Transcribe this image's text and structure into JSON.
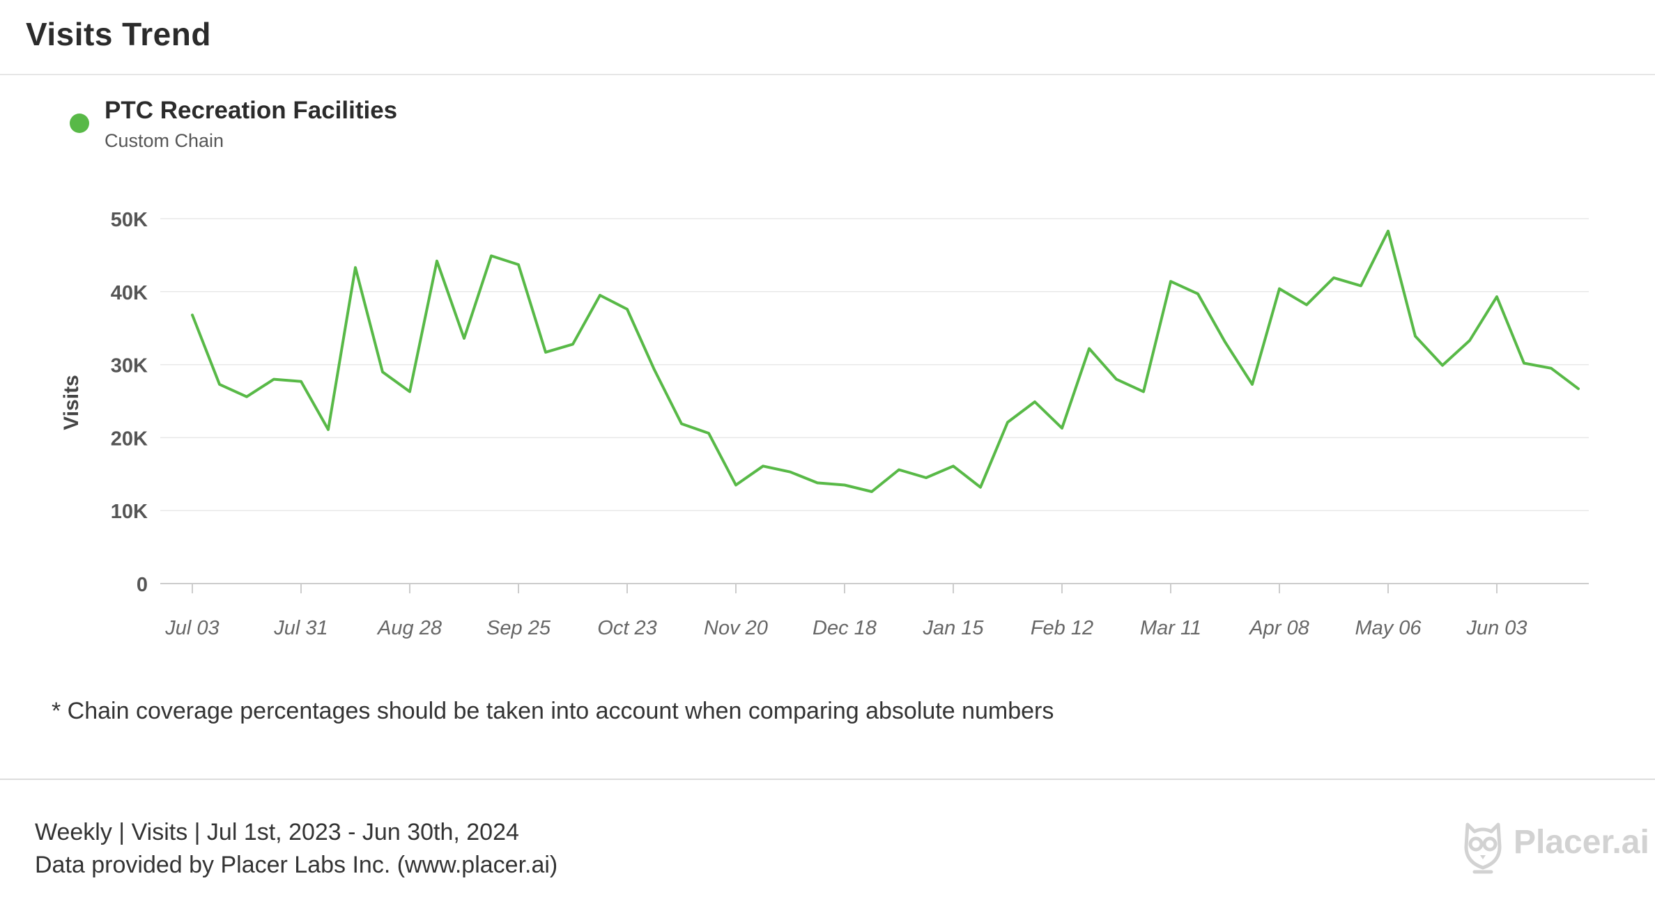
{
  "header": {
    "title": "Visits Trend"
  },
  "legend": {
    "name": "PTC Recreation Facilities",
    "subtitle": "Custom Chain",
    "color": "#58b947"
  },
  "chart_data": {
    "type": "line",
    "ylabel": "Visits",
    "xlabel": "",
    "ylim": [
      0,
      50000
    ],
    "yticks": [
      0,
      10000,
      20000,
      30000,
      40000,
      50000
    ],
    "ytick_labels": [
      "0",
      "10K",
      "20K",
      "30K",
      "40K",
      "50K"
    ],
    "xticks": [
      "2023-07-03",
      "2023-07-31",
      "2023-08-28",
      "2023-09-25",
      "2023-10-23",
      "2023-11-20",
      "2023-12-18",
      "2024-01-15",
      "2024-02-12",
      "2024-03-11",
      "2024-04-08",
      "2024-05-06",
      "2024-06-03"
    ],
    "xtick_labels": [
      "Jul 03",
      "Jul 31",
      "Aug 28",
      "Sep 25",
      "Oct 23",
      "Nov 20",
      "Dec 18",
      "Jan 15",
      "Feb 12",
      "Mar 11",
      "Apr 08",
      "May 06",
      "Jun 03"
    ],
    "grid": true,
    "series": [
      {
        "name": "PTC Recreation Facilities",
        "color": "#58b947",
        "x": [
          "2023-07-03",
          "2023-07-10",
          "2023-07-17",
          "2023-07-24",
          "2023-07-31",
          "2023-08-07",
          "2023-08-14",
          "2023-08-21",
          "2023-08-28",
          "2023-09-04",
          "2023-09-11",
          "2023-09-18",
          "2023-09-25",
          "2023-10-02",
          "2023-10-09",
          "2023-10-16",
          "2023-10-23",
          "2023-10-30",
          "2023-11-06",
          "2023-11-13",
          "2023-11-20",
          "2023-11-27",
          "2023-12-04",
          "2023-12-11",
          "2023-12-18",
          "2023-12-25",
          "2024-01-01",
          "2024-01-08",
          "2024-01-15",
          "2024-01-22",
          "2024-01-29",
          "2024-02-05",
          "2024-02-12",
          "2024-02-19",
          "2024-02-26",
          "2024-03-04",
          "2024-03-11",
          "2024-03-18",
          "2024-03-25",
          "2024-04-01",
          "2024-04-08",
          "2024-04-15",
          "2024-04-22",
          "2024-04-29",
          "2024-05-06",
          "2024-05-13",
          "2024-05-20",
          "2024-05-27",
          "2024-06-03",
          "2024-06-10",
          "2024-06-17",
          "2024-06-24"
        ],
        "values": [
          36800,
          27300,
          25600,
          28000,
          27700,
          21100,
          43300,
          29000,
          26300,
          44200,
          33600,
          44900,
          43700,
          31700,
          32800,
          39500,
          37600,
          29300,
          21900,
          20600,
          13500,
          16100,
          15300,
          13800,
          13500,
          12600,
          15600,
          14500,
          16100,
          13200,
          22100,
          24900,
          21300,
          32200,
          28000,
          26300,
          41400,
          39700,
          33100,
          27300,
          40400,
          38200,
          41900,
          40800,
          48300,
          33900,
          29900,
          33300,
          39300,
          30200,
          29500,
          26700
        ]
      }
    ]
  },
  "note": "* Chain coverage percentages should be taken into account when comparing absolute numbers",
  "footer": {
    "line1": "Weekly | Visits | Jul 1st, 2023 - Jun 30th, 2024",
    "line2": "Data provided by Placer Labs Inc. (www.placer.ai)",
    "brand": "Placer.ai",
    "brand_icon": "owl-logo-icon"
  }
}
